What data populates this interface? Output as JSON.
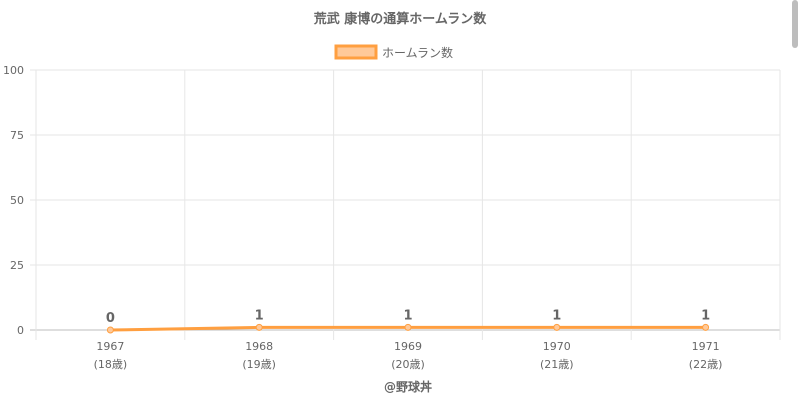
{
  "chart_data": {
    "type": "line",
    "title": "荒武 康博の通算ホームラン数",
    "legend": {
      "label": "ホームラン数",
      "position": "top"
    },
    "categories": [
      "1967",
      "1968",
      "1969",
      "1970",
      "1971"
    ],
    "category_sublabels": [
      "(18歳)",
      "(19歳)",
      "(20歳)",
      "(21歳)",
      "(22歳)"
    ],
    "series": [
      {
        "name": "ホームラン数",
        "values": [
          0,
          1,
          1,
          1,
          1
        ],
        "color": "#ff9f40"
      }
    ],
    "ylim": [
      0,
      100
    ],
    "yticks": [
      0,
      25,
      50,
      75,
      100
    ],
    "grid": true,
    "data_labels": [
      "0",
      "1",
      "1",
      "1",
      "1"
    ]
  },
  "footer": "@野球丼",
  "colors": {
    "line": "#ff9f40",
    "fill": "#ffc999",
    "grid": "#e6e6e6",
    "text": "#666666"
  }
}
